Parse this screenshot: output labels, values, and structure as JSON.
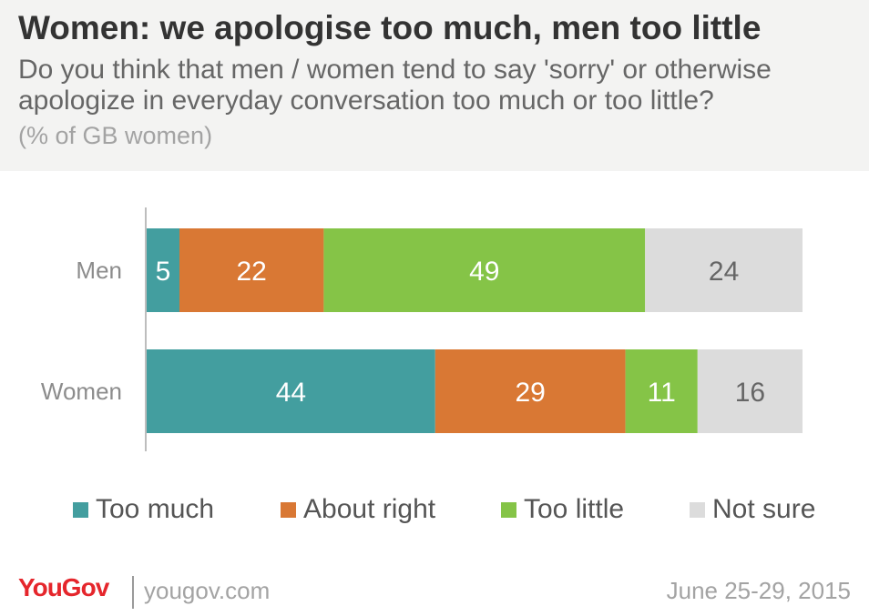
{
  "header": {
    "title": "Women: we apologise too much, men too little",
    "subtitle_line1": "Do you think that men / women tend to say 'sorry' or otherwise",
    "subtitle_line2": "apologize in everyday conversation too much or too little?",
    "note": "(% of GB women)"
  },
  "chart_data": {
    "type": "bar",
    "orientation": "horizontal",
    "stacked": true,
    "categories": [
      "Men",
      "Women"
    ],
    "series": [
      {
        "name": "Too much",
        "values": [
          5,
          44
        ],
        "color": "#439e9f"
      },
      {
        "name": "About right",
        "values": [
          22,
          29
        ],
        "color": "#d97834"
      },
      {
        "name": "Too little",
        "values": [
          49,
          11
        ],
        "color": "#85c447"
      },
      {
        "name": "Not sure",
        "values": [
          24,
          16
        ],
        "color": "#dcdcdc"
      }
    ],
    "xlim": [
      0,
      100
    ],
    "grid": false,
    "legend_position": "bottom"
  },
  "legend": {
    "items": [
      {
        "label": "Too much",
        "color": "#439e9f"
      },
      {
        "label": "About right",
        "color": "#d97834"
      },
      {
        "label": "Too little",
        "color": "#85c447"
      },
      {
        "label": "Not sure",
        "color": "#dcdcdc"
      }
    ]
  },
  "footer": {
    "logo": "YouGov",
    "site": "yougov.com",
    "date": "June 25-29, 2015"
  },
  "colors": {
    "brand": "#e5262c",
    "label_light": "#ffffff",
    "label_dark": "#666666"
  }
}
